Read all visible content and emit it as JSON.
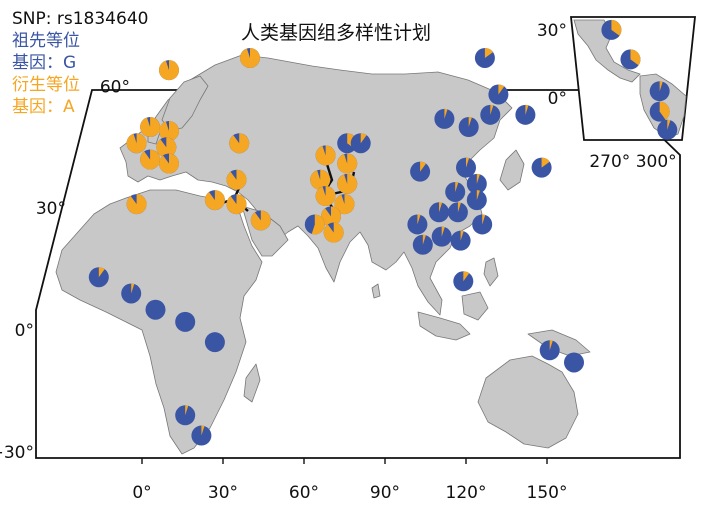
{
  "title": "人类基因组多样性计划",
  "legend": {
    "snp": "SNP: rs1834640",
    "ancestral_label": "祖先等位",
    "ancestral_gene": "基因：G",
    "derived_label": "衍生等位",
    "derived_gene": "基因：A"
  },
  "colors": {
    "ancestral": "#3a55a4",
    "derived": "#f5a623",
    "land": "#c8c8c8",
    "coast": "#777777"
  },
  "main_axes": {
    "lon_ticks": [
      "0°",
      "30°",
      "60°",
      "90°",
      "120°",
      "150°"
    ],
    "lat_ticks": [
      "60°",
      "30°",
      "0°",
      "−30°"
    ]
  },
  "inset_axes": {
    "lat_ticks": [
      "30°",
      "0°"
    ],
    "lon_ticks": [
      "270° 300°"
    ]
  },
  "populations": {
    "europe": [
      {
        "lon": 10,
        "lat": 64,
        "derived_share": 0.95
      },
      {
        "lon": 40,
        "lat": 67,
        "derived_share": 0.95
      },
      {
        "lon": 3,
        "lat": 50,
        "derived_share": 0.95
      },
      {
        "lon": 10,
        "lat": 49,
        "derived_share": 0.95
      },
      {
        "lon": -2,
        "lat": 46,
        "derived_share": 0.95
      },
      {
        "lon": 9,
        "lat": 45,
        "derived_share": 0.9
      },
      {
        "lon": 3,
        "lat": 42,
        "derived_share": 0.9
      },
      {
        "lon": 10,
        "lat": 41,
        "derived_share": 0.9
      },
      {
        "lon": 36,
        "lat": 46,
        "derived_share": 0.9
      }
    ],
    "middle_east": [
      {
        "lon": 35,
        "lat": 37,
        "derived_share": 0.9
      },
      {
        "lon": 27,
        "lat": 32,
        "derived_share": 0.9
      },
      {
        "lon": 35,
        "lat": 31,
        "derived_share": 0.9
      },
      {
        "lon": 44,
        "lat": 27,
        "derived_share": 0.9
      },
      {
        "lon": -2,
        "lat": 31,
        "derived_share": 0.9
      }
    ],
    "central_south_asia": [
      {
        "lon": 68,
        "lat": 43,
        "derived_share": 0.95
      },
      {
        "lon": 76,
        "lat": 46,
        "derived_share": 0.35
      },
      {
        "lon": 81,
        "lat": 46,
        "derived_share": 0.1
      },
      {
        "lon": 76,
        "lat": 41,
        "derived_share": 0.95
      },
      {
        "lon": 66,
        "lat": 37,
        "derived_share": 0.95
      },
      {
        "lon": 76,
        "lat": 36,
        "derived_share": 0.95
      },
      {
        "lon": 68,
        "lat": 33,
        "derived_share": 0.95
      },
      {
        "lon": 75,
        "lat": 31,
        "derived_share": 0.95
      },
      {
        "lon": 70,
        "lat": 28,
        "derived_share": 0.9
      },
      {
        "lon": 64,
        "lat": 26,
        "derived_share": 0.55
      },
      {
        "lon": 71,
        "lat": 24,
        "derived_share": 0.9
      }
    ],
    "east_asia": [
      {
        "lon": 127,
        "lat": 67,
        "derived_share": 0.15
      },
      {
        "lon": 132,
        "lat": 58,
        "derived_share": 0.1
      },
      {
        "lon": 129,
        "lat": 53,
        "derived_share": 0.05
      },
      {
        "lon": 142,
        "lat": 53,
        "derived_share": 0.05
      },
      {
        "lon": 112,
        "lat": 52,
        "derived_share": 0.05
      },
      {
        "lon": 121,
        "lat": 50,
        "derived_share": 0.05
      },
      {
        "lon": 148,
        "lat": 40,
        "derived_share": 0.15
      },
      {
        "lon": 103,
        "lat": 39,
        "derived_share": 0.1
      },
      {
        "lon": 120,
        "lat": 40,
        "derived_share": 0.05
      },
      {
        "lon": 124,
        "lat": 36,
        "derived_share": 0.05
      },
      {
        "lon": 116,
        "lat": 34,
        "derived_share": 0.05
      },
      {
        "lon": 124,
        "lat": 32,
        "derived_share": 0.05
      },
      {
        "lon": 110,
        "lat": 29,
        "derived_share": 0.05
      },
      {
        "lon": 117,
        "lat": 29,
        "derived_share": 0.05
      },
      {
        "lon": 126,
        "lat": 26,
        "derived_share": 0.05
      },
      {
        "lon": 102,
        "lat": 26,
        "derived_share": 0.05
      },
      {
        "lon": 111,
        "lat": 23,
        "derived_share": 0.05
      },
      {
        "lon": 104,
        "lat": 21,
        "derived_share": 0.05
      },
      {
        "lon": 118,
        "lat": 22,
        "derived_share": 0.05
      },
      {
        "lon": 119,
        "lat": 12,
        "derived_share": 0.1
      }
    ],
    "africa": [
      {
        "lon": -16,
        "lat": 13,
        "derived_share": 0.1
      },
      {
        "lon": -4,
        "lat": 9,
        "derived_share": 0.05
      },
      {
        "lon": 5,
        "lat": 5,
        "derived_share": 0
      },
      {
        "lon": 16,
        "lat": 2,
        "derived_share": 0
      },
      {
        "lon": 27,
        "lat": -3,
        "derived_share": 0
      },
      {
        "lon": 16,
        "lat": -21,
        "derived_share": 0.05
      },
      {
        "lon": 22,
        "lat": -26,
        "derived_share": 0.05
      }
    ],
    "oceania": [
      {
        "lon": 151,
        "lat": -5,
        "derived_share": 0.05
      },
      {
        "lon": 160,
        "lat": -8,
        "derived_share": 0
      }
    ],
    "americas_inset": [
      {
        "lon": 253,
        "lat": 30,
        "derived_share": 0.35
      },
      {
        "lon": 268,
        "lat": 17,
        "derived_share": 0.35
      },
      {
        "lon": 291,
        "lat": 3,
        "derived_share": 0.05
      },
      {
        "lon": 291,
        "lat": -6,
        "derived_share": 0.4
      },
      {
        "lon": 297,
        "lat": -14,
        "derived_share": 0.05
      }
    ]
  }
}
